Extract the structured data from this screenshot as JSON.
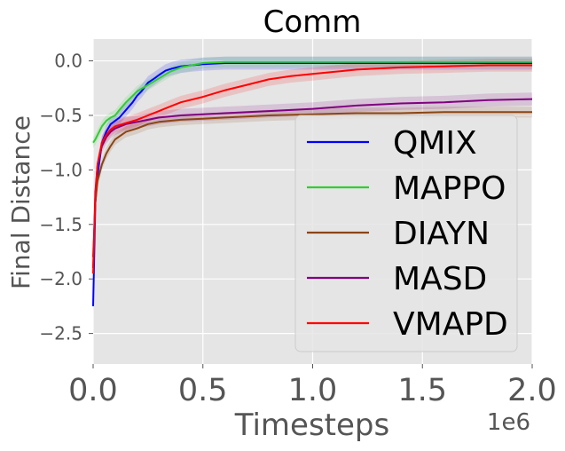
{
  "chart_data": {
    "type": "line",
    "title": "Comm",
    "xlabel": "Timesteps",
    "ylabel": "Final Distance",
    "x_offset_label": "1e6",
    "xlim": [
      0,
      2.0
    ],
    "ylim": [
      -2.78,
      0.2
    ],
    "x_ticks": [
      0.0,
      0.5,
      1.0,
      1.5,
      2.0
    ],
    "x_tick_labels": [
      "0.0",
      "0.5",
      "1.0",
      "1.5",
      "2.0"
    ],
    "y_ticks": [
      0.0,
      -0.5,
      -1.0,
      -1.5,
      -2.0,
      -2.5
    ],
    "y_tick_labels": [
      "0.0",
      "−0.5",
      "−1.0",
      "−1.5",
      "−2.0",
      "−2.5"
    ],
    "grid": true,
    "legend_position": "center-right",
    "series": [
      {
        "name": "QMIX",
        "color": "#0000ff",
        "x": [
          0.0,
          0.01,
          0.02,
          0.04,
          0.06,
          0.08,
          0.1,
          0.12,
          0.15,
          0.18,
          0.2,
          0.22,
          0.25,
          0.28,
          0.3,
          0.33,
          0.36,
          0.4,
          0.45,
          0.5,
          0.6,
          0.7,
          0.8,
          1.0,
          1.2,
          1.4,
          1.6,
          1.8,
          2.0
        ],
        "y": [
          -2.25,
          -1.3,
          -1.05,
          -0.75,
          -0.65,
          -0.58,
          -0.55,
          -0.52,
          -0.45,
          -0.38,
          -0.32,
          -0.28,
          -0.2,
          -0.16,
          -0.13,
          -0.09,
          -0.07,
          -0.05,
          -0.04,
          -0.03,
          -0.02,
          -0.02,
          -0.02,
          -0.02,
          -0.02,
          -0.02,
          -0.02,
          -0.02,
          -0.02
        ],
        "band": 0.06
      },
      {
        "name": "MAPPO",
        "color": "#32cd32",
        "x": [
          0.0,
          0.01,
          0.02,
          0.04,
          0.06,
          0.08,
          0.1,
          0.12,
          0.15,
          0.18,
          0.2,
          0.25,
          0.3,
          0.35,
          0.4,
          0.45,
          0.5,
          0.6,
          0.8,
          1.0,
          1.2,
          1.4,
          1.6,
          1.8,
          2.0
        ],
        "y": [
          -0.75,
          -0.72,
          -0.68,
          -0.6,
          -0.55,
          -0.52,
          -0.5,
          -0.45,
          -0.38,
          -0.32,
          -0.28,
          -0.22,
          -0.16,
          -0.1,
          -0.06,
          -0.04,
          -0.02,
          -0.01,
          -0.01,
          -0.01,
          -0.01,
          -0.01,
          -0.01,
          -0.01,
          -0.01
        ],
        "band": 0.05
      },
      {
        "name": "DIAYN",
        "color": "#8b4513",
        "x": [
          0.0,
          0.01,
          0.02,
          0.04,
          0.06,
          0.08,
          0.1,
          0.15,
          0.2,
          0.25,
          0.3,
          0.4,
          0.5,
          0.6,
          0.8,
          1.0,
          1.2,
          1.4,
          1.6,
          1.8,
          2.0
        ],
        "y": [
          -1.8,
          -1.3,
          -1.1,
          -0.95,
          -0.85,
          -0.78,
          -0.72,
          -0.65,
          -0.62,
          -0.58,
          -0.56,
          -0.54,
          -0.53,
          -0.52,
          -0.5,
          -0.49,
          -0.48,
          -0.48,
          -0.47,
          -0.47,
          -0.47
        ],
        "band": 0.05
      },
      {
        "name": "MASD",
        "color": "#800080",
        "x": [
          0.0,
          0.01,
          0.02,
          0.04,
          0.06,
          0.08,
          0.1,
          0.15,
          0.2,
          0.25,
          0.3,
          0.4,
          0.5,
          0.6,
          0.8,
          1.0,
          1.2,
          1.4,
          1.6,
          1.8,
          2.0
        ],
        "y": [
          -1.9,
          -1.2,
          -0.95,
          -0.78,
          -0.7,
          -0.65,
          -0.62,
          -0.58,
          -0.56,
          -0.54,
          -0.52,
          -0.5,
          -0.49,
          -0.48,
          -0.46,
          -0.44,
          -0.41,
          -0.39,
          -0.38,
          -0.36,
          -0.35
        ],
        "band": 0.06
      },
      {
        "name": "VMAPD",
        "color": "#ff0000",
        "x": [
          0.0,
          0.01,
          0.02,
          0.04,
          0.06,
          0.08,
          0.1,
          0.15,
          0.2,
          0.25,
          0.3,
          0.35,
          0.4,
          0.5,
          0.6,
          0.7,
          0.8,
          0.9,
          1.0,
          1.2,
          1.4,
          1.6,
          1.8,
          2.0
        ],
        "y": [
          -1.95,
          -1.25,
          -0.95,
          -0.75,
          -0.68,
          -0.63,
          -0.6,
          -0.57,
          -0.54,
          -0.5,
          -0.46,
          -0.42,
          -0.38,
          -0.33,
          -0.27,
          -0.22,
          -0.17,
          -0.14,
          -0.12,
          -0.08,
          -0.06,
          -0.05,
          -0.04,
          -0.04
        ],
        "band": 0.06
      }
    ]
  }
}
